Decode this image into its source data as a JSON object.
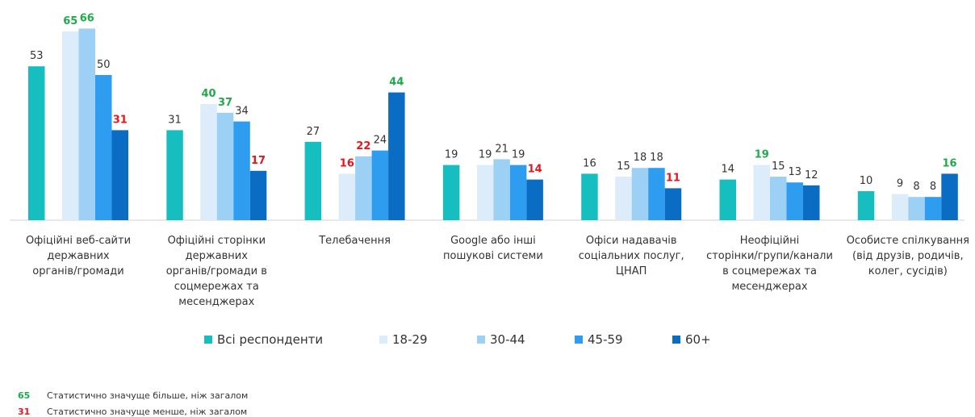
{
  "chart_data": {
    "type": "bar",
    "categories": [
      "Офіційні веб-сайти\nдержавних\nорганів/громади",
      "Офіційні сторінки\nдержавних\nорганів/громади в\nсоцмережах та\nмесенджерах",
      "Телебачення",
      "Google або інші\nпошукові системи",
      "Офіси надавачів\nсоціальних послуг,\nЦНАП",
      "Неофіційні\nсторінки/групи/канали\nв соцмережах та\nмесенджерах",
      "Особисте спілкування\n(від друзів, родичів,\nколег, сусідів)"
    ],
    "series": [
      {
        "name": "Всі респонденти",
        "color": "#17bec0",
        "values": [
          53,
          31,
          27,
          19,
          16,
          14,
          10
        ],
        "label_colors": [
          "#333333",
          "#333333",
          "#333333",
          "#333333",
          "#333333",
          "#333333",
          "#333333"
        ]
      },
      {
        "name": "18-29",
        "color": "#dcecfb",
        "values": [
          65,
          40,
          16,
          19,
          15,
          19,
          9
        ],
        "label_colors": [
          "#1faa4b",
          "#1faa4b",
          "#e8141c",
          "#333333",
          "#333333",
          "#1faa4b",
          "#333333"
        ]
      },
      {
        "name": "30-44",
        "color": "#9dd0f5",
        "values": [
          66,
          37,
          22,
          21,
          18,
          15,
          8
        ],
        "label_colors": [
          "#1faa4b",
          "#1faa4b",
          "#e8141c",
          "#333333",
          "#333333",
          "#333333",
          "#333333"
        ]
      },
      {
        "name": "45-59",
        "color": "#2e9cef",
        "values": [
          50,
          34,
          24,
          19,
          18,
          13,
          8
        ],
        "label_colors": [
          "#333333",
          "#333333",
          "#333333",
          "#333333",
          "#333333",
          "#333333",
          "#333333"
        ]
      },
      {
        "name": "60+",
        "color": "#0a6cc3",
        "values": [
          31,
          17,
          44,
          14,
          11,
          12,
          16
        ],
        "label_colors": [
          "#e8141c",
          "#e8141c",
          "#1faa4b",
          "#e8141c",
          "#e8141c",
          "#333333",
          "#1faa4b"
        ]
      }
    ],
    "ylim": [
      0,
      70
    ],
    "notes": [
      {
        "marker": "65",
        "text": "Статистично значуще більше, ніж загалом",
        "color": "#1faa4b"
      },
      {
        "marker": "31",
        "text": "Статистично значуще менше, ніж загалом",
        "color": "#e8141c"
      }
    ]
  }
}
